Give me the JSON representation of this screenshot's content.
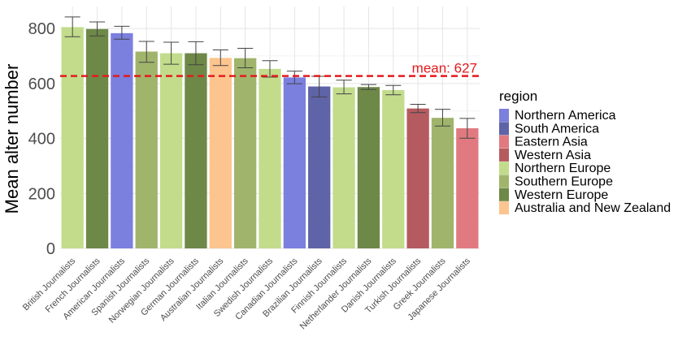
{
  "chart_data": {
    "type": "bar",
    "ylabel": "Mean alter number",
    "ylim": [
      0,
      880
    ],
    "yticks": [
      0,
      200,
      400,
      600,
      800
    ],
    "grid": true,
    "legend": {
      "title": "region",
      "placement": "right"
    },
    "regions": [
      {
        "name": "Northern America",
        "color": "#7b7fde"
      },
      {
        "name": "South America",
        "color": "#5f63a8"
      },
      {
        "name": "Eastern Asia",
        "color": "#e07a80"
      },
      {
        "name": "Western Asia",
        "color": "#b55b60"
      },
      {
        "name": "Northern Europe",
        "color": "#c2dc8c"
      },
      {
        "name": "Southern Europe",
        "color": "#a1b46c"
      },
      {
        "name": "Western Europe",
        "color": "#6e8848"
      },
      {
        "name": "Australia and New Zealand",
        "color": "#fcc58f"
      }
    ],
    "bars": [
      {
        "category": "British Journalists",
        "region": "Northern Europe",
        "value": 805,
        "err_low": 770,
        "err_high": 842
      },
      {
        "category": "French Journalists",
        "region": "Western Europe",
        "value": 798,
        "err_low": 773,
        "err_high": 824
      },
      {
        "category": "American Journalists",
        "region": "Northern America",
        "value": 783,
        "err_low": 761,
        "err_high": 808
      },
      {
        "category": "Spanish Journalists",
        "region": "Southern Europe",
        "value": 716,
        "err_low": 677,
        "err_high": 753
      },
      {
        "category": "Norwegian Journalists",
        "region": "Northern Europe",
        "value": 710,
        "err_low": 670,
        "err_high": 750
      },
      {
        "category": "German Journalists",
        "region": "Western Europe",
        "value": 710,
        "err_low": 668,
        "err_high": 752
      },
      {
        "category": "Australian Journalists",
        "region": "Australia and New Zealand",
        "value": 693,
        "err_low": 665,
        "err_high": 722
      },
      {
        "category": "Italian Journalists",
        "region": "Southern Europe",
        "value": 692,
        "err_low": 657,
        "err_high": 728
      },
      {
        "category": "Swedish Journalists",
        "region": "Northern Europe",
        "value": 653,
        "err_low": 623,
        "err_high": 683
      },
      {
        "category": "Canadian Journalists",
        "region": "Northern America",
        "value": 622,
        "err_low": 599,
        "err_high": 645
      },
      {
        "category": "Brazilian Journalists",
        "region": "South America",
        "value": 589,
        "err_low": 551,
        "err_high": 626
      },
      {
        "category": "Finnish Journalists",
        "region": "Northern Europe",
        "value": 586,
        "err_low": 562,
        "err_high": 612
      },
      {
        "category": "Netherlander Journalists",
        "region": "Western Europe",
        "value": 587,
        "err_low": 578,
        "err_high": 596
      },
      {
        "category": "Danish Journalists",
        "region": "Northern Europe",
        "value": 576,
        "err_low": 559,
        "err_high": 593
      },
      {
        "category": "Turkish Journalists",
        "region": "Western Asia",
        "value": 509,
        "err_low": 494,
        "err_high": 524
      },
      {
        "category": "Greek Journalists",
        "region": "Southern Europe",
        "value": 475,
        "err_low": 445,
        "err_high": 506
      },
      {
        "category": "Japanese Journalists",
        "region": "Eastern Asia",
        "value": 437,
        "err_low": 401,
        "err_high": 473
      }
    ],
    "mean": {
      "value": 627,
      "label": "mean: 627",
      "color": "#e41a1c"
    }
  }
}
